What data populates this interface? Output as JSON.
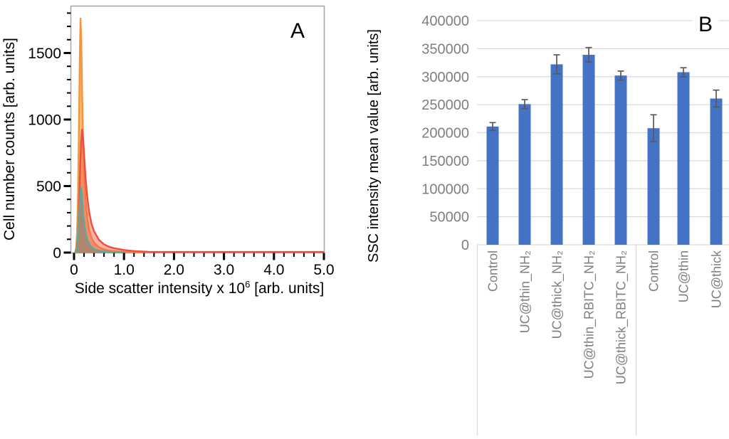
{
  "panel_a": {
    "panel_letter": "A",
    "ylabel": "Cell number counts  [arb. units]",
    "xlabel": {
      "prefix": "Side scatter intensity x 10",
      "superscript": "6",
      "suffix": " [arb. units]"
    }
  },
  "panel_b": {
    "panel_letter": "B",
    "ylabel": "SSC intensity mean value [arb. units]"
  },
  "chart_data": [
    {
      "id": "A",
      "type": "area",
      "title": "",
      "xlabel": "Side scatter intensity x 10^6 [arb. units]",
      "ylabel": "Cell number counts [arb. units]",
      "xlim": [
        0,
        5.0
      ],
      "ylim": [
        0,
        1850
      ],
      "x_major_ticks": [
        0,
        1.0,
        2.0,
        3.0,
        4.0,
        5.0
      ],
      "x_minor_step": 0.2,
      "y_major_ticks": [
        0,
        500,
        1000,
        1500
      ],
      "y_minor_step": 100,
      "grid": false,
      "legend": "none",
      "frame_color": "#a3a3a3",
      "tick_color": "#000000",
      "series": [
        {
          "name": "orange-histogram",
          "stroke": "#f5943a",
          "fill": "rgba(248,160,76,0.72)",
          "peak": {
            "x": 0.13,
            "y": 1760
          },
          "points": [
            [
              0.02,
              0
            ],
            [
              0.04,
              30
            ],
            [
              0.06,
              140
            ],
            [
              0.08,
              450
            ],
            [
              0.1,
              1000
            ],
            [
              0.115,
              1480
            ],
            [
              0.13,
              1760
            ],
            [
              0.145,
              1600
            ],
            [
              0.16,
              1250
            ],
            [
              0.18,
              880
            ],
            [
              0.2,
              620
            ],
            [
              0.23,
              400
            ],
            [
              0.26,
              270
            ],
            [
              0.3,
              175
            ],
            [
              0.35,
              110
            ],
            [
              0.4,
              75
            ],
            [
              0.5,
              40
            ],
            [
              0.6,
              24
            ],
            [
              0.7,
              15
            ],
            [
              0.8,
              10
            ],
            [
              1.0,
              6
            ],
            [
              1.5,
              4
            ],
            [
              2.5,
              4
            ],
            [
              5.0,
              4
            ]
          ]
        },
        {
          "name": "red-histogram",
          "stroke": "#ee4f3d",
          "fill": "rgba(240,98,80,0.50)",
          "peak": {
            "x": 0.16,
            "y": 925
          },
          "points": [
            [
              0.03,
              0
            ],
            [
              0.05,
              25
            ],
            [
              0.08,
              130
            ],
            [
              0.1,
              330
            ],
            [
              0.12,
              600
            ],
            [
              0.14,
              820
            ],
            [
              0.16,
              925
            ],
            [
              0.18,
              870
            ],
            [
              0.2,
              750
            ],
            [
              0.23,
              570
            ],
            [
              0.26,
              430
            ],
            [
              0.3,
              310
            ],
            [
              0.35,
              215
            ],
            [
              0.4,
              160
            ],
            [
              0.5,
              95
            ],
            [
              0.6,
              62
            ],
            [
              0.7,
              44
            ],
            [
              0.8,
              33
            ],
            [
              0.9,
              26
            ],
            [
              1.0,
              20
            ],
            [
              1.1,
              15
            ],
            [
              1.25,
              10
            ],
            [
              1.5,
              6
            ],
            [
              2.0,
              5
            ],
            [
              5.0,
              5
            ]
          ]
        },
        {
          "name": "gray-teal-histogram",
          "stroke": "#5fa8a1",
          "fill": "rgba(130,125,113,0.60)",
          "peak": {
            "x": 0.14,
            "y": 490
          },
          "points": [
            [
              0.03,
              0
            ],
            [
              0.05,
              20
            ],
            [
              0.07,
              80
            ],
            [
              0.09,
              190
            ],
            [
              0.11,
              330
            ],
            [
              0.125,
              440
            ],
            [
              0.14,
              490
            ],
            [
              0.155,
              450
            ],
            [
              0.17,
              370
            ],
            [
              0.19,
              270
            ],
            [
              0.22,
              180
            ],
            [
              0.25,
              120
            ],
            [
              0.28,
              85
            ],
            [
              0.32,
              55
            ],
            [
              0.36,
              38
            ],
            [
              0.42,
              24
            ],
            [
              0.5,
              14
            ],
            [
              0.6,
              8
            ],
            [
              0.75,
              4
            ],
            [
              0.9,
              2
            ],
            [
              1.0,
              1
            ]
          ]
        }
      ]
    },
    {
      "id": "B",
      "type": "bar",
      "title": "",
      "xlabel": "",
      "ylabel": "SSC intensity mean value [arb. units]",
      "ylim": [
        0,
        400000
      ],
      "y_tick_step": 50000,
      "y_tick_labels": [
        "0",
        "50000",
        "100000",
        "150000",
        "200000",
        "250000",
        "300000",
        "350000",
        "400000"
      ],
      "grid": true,
      "legend": "none",
      "categories": [
        "Control",
        "UC@thin_NH₂",
        "UC@thick_NH₂",
        "UC@thin_RBITC_NH₂",
        "UC@thick_RBITC_NH₂",
        "Control",
        "UC@thin",
        "UC@thick"
      ],
      "values": [
        211000,
        251000,
        322000,
        339000,
        302000,
        208000,
        308000,
        261000
      ],
      "errors": [
        7000,
        8000,
        17000,
        13000,
        8000,
        24000,
        8000,
        15000
      ],
      "group_split_after_index": 4,
      "bar_color": "#4472c4",
      "error_color": "#595959",
      "gridline_color": "#d9d9d9",
      "axis_text_color": "#7f7f7f"
    }
  ]
}
